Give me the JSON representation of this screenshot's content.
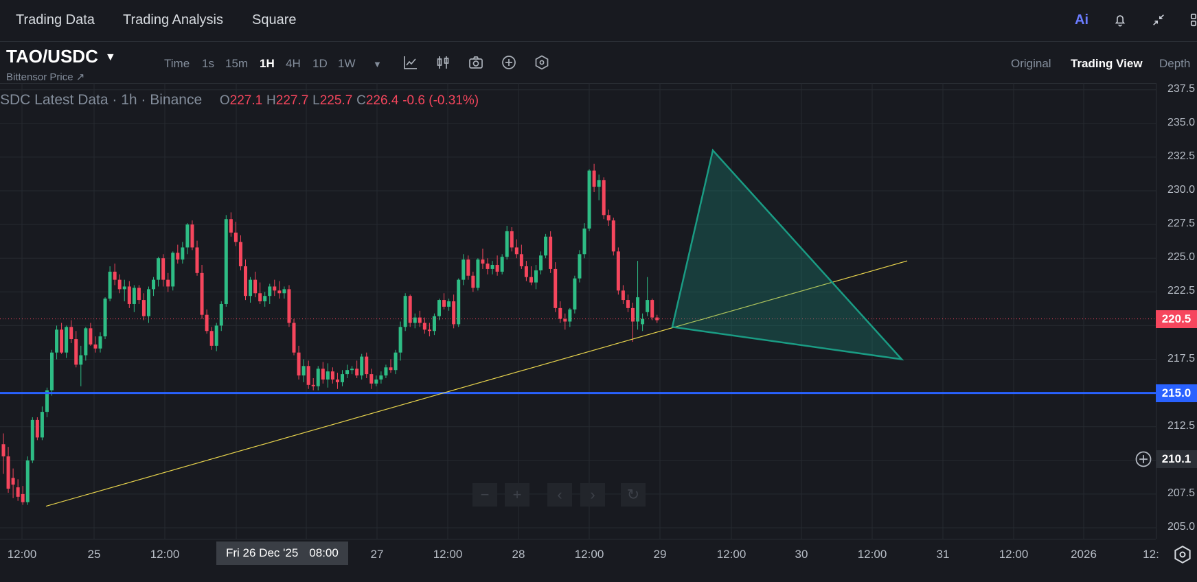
{
  "nav": {
    "items": [
      "Trading Data",
      "Trading Analysis",
      "Square"
    ],
    "ai_label": "Ai",
    "icons": [
      "ai-icon",
      "bell-icon",
      "collapse-icon",
      "grid-icon"
    ]
  },
  "toolbar": {
    "pair": "TAO/USDC",
    "pair_caret": "▼",
    "subtitle": "Bittensor Price ↗",
    "timeframes": [
      "Time",
      "1s",
      "15m",
      "1H",
      "4H",
      "1D",
      "1W"
    ],
    "active_timeframe": "1H",
    "more_caret": "▼",
    "tools": [
      "indicator-icon",
      "candle-type-icon",
      "camera-icon",
      "add-icon",
      "settings-hex-icon"
    ],
    "views": [
      "Original",
      "Trading View",
      "Depth"
    ],
    "active_view": "Trading View"
  },
  "legend": {
    "title": "SDC Latest Data · 1h · Binance",
    "o_label": "O",
    "o_val": "227.1",
    "h_label": "H",
    "h_val": "227.7",
    "l_label": "L",
    "l_val": "225.7",
    "c_label": "C",
    "c_val": "226.4",
    "change": "-0.6 (-0.31%)"
  },
  "price_axis": {
    "ticks": [
      "237.5",
      "235.0",
      "232.5",
      "230.0",
      "227.5",
      "225.0",
      "222.5",
      "220.0",
      "217.5",
      "215.0",
      "212.5",
      "210.0",
      "207.5",
      "205.0"
    ],
    "current_price": "220.5",
    "hline_price": "215.0",
    "crosshair_price": "210.1"
  },
  "time_axis": {
    "ticks": [
      "12:00",
      "25",
      "12:00",
      "27",
      "12:00",
      "28",
      "12:00",
      "29",
      "12:00",
      "30",
      "12:00",
      "31",
      "12:00",
      "2026",
      "12:"
    ],
    "crosshair_date": "Fri 26 Dec '25",
    "crosshair_time": "08:00"
  },
  "zoom_controls": [
    "−",
    "+",
    "‹",
    "›",
    "↻"
  ],
  "colors": {
    "up": "#2ebd85",
    "down": "#f6465d",
    "hline": "#2962ff",
    "trendline": "#e8d44d",
    "pattern": "#1a9c84"
  },
  "chart_data": {
    "type": "candlestick",
    "ylim": [
      205.0,
      238.5
    ],
    "candles": [
      [
        211.2,
        212.0,
        209.0,
        210.3
      ],
      [
        210.3,
        211.0,
        207.6,
        207.9
      ],
      [
        208.7,
        209.4,
        207.2,
        208.2
      ],
      [
        208.0,
        208.6,
        207.0,
        207.3
      ],
      [
        207.5,
        208.1,
        206.7,
        206.9
      ],
      [
        206.9,
        210.3,
        206.7,
        210.0
      ],
      [
        210.0,
        213.2,
        209.8,
        213.0
      ],
      [
        213.0,
        213.2,
        211.5,
        211.7
      ],
      [
        211.7,
        214.0,
        211.5,
        213.6
      ],
      [
        213.6,
        215.4,
        213.2,
        215.2
      ],
      [
        215.2,
        218.2,
        214.8,
        218.0
      ],
      [
        218.0,
        220.0,
        217.5,
        219.7
      ],
      [
        219.7,
        220.2,
        217.9,
        218.0
      ],
      [
        218.0,
        220.0,
        217.6,
        219.9
      ],
      [
        219.9,
        220.4,
        218.7,
        219.0
      ],
      [
        219.0,
        219.6,
        216.9,
        217.1
      ],
      [
        217.1,
        218.5,
        215.5,
        217.8
      ],
      [
        217.8,
        219.9,
        217.4,
        219.8
      ],
      [
        219.8,
        220.2,
        218.5,
        218.6
      ],
      [
        218.6,
        219.2,
        218.0,
        218.3
      ],
      [
        218.3,
        219.5,
        218.0,
        219.2
      ],
      [
        219.2,
        222.1,
        219.0,
        222.0
      ],
      [
        222.0,
        224.4,
        221.8,
        224.0
      ],
      [
        224.0,
        224.6,
        223.0,
        223.4
      ],
      [
        223.4,
        223.8,
        222.4,
        222.7
      ],
      [
        222.7,
        223.4,
        221.8,
        222.9
      ],
      [
        222.9,
        223.3,
        221.3,
        221.6
      ],
      [
        221.6,
        223.0,
        221.0,
        222.8
      ],
      [
        222.8,
        223.0,
        221.6,
        221.9
      ],
      [
        221.9,
        222.4,
        220.4,
        220.7
      ],
      [
        220.7,
        222.9,
        220.2,
        222.7
      ],
      [
        222.7,
        223.6,
        222.2,
        223.4
      ],
      [
        223.4,
        225.1,
        222.9,
        225.0
      ],
      [
        225.0,
        225.3,
        222.9,
        223.4
      ],
      [
        223.4,
        223.9,
        222.5,
        222.9
      ],
      [
        222.9,
        225.5,
        222.6,
        225.4
      ],
      [
        225.4,
        226.0,
        224.6,
        224.9
      ],
      [
        224.9,
        226.2,
        224.6,
        225.8
      ],
      [
        225.8,
        227.6,
        225.3,
        227.5
      ],
      [
        227.5,
        227.8,
        225.6,
        225.8
      ],
      [
        225.8,
        226.3,
        223.7,
        223.9
      ],
      [
        223.9,
        224.5,
        220.5,
        220.8
      ],
      [
        220.8,
        221.2,
        219.4,
        219.6
      ],
      [
        219.6,
        219.9,
        218.2,
        218.5
      ],
      [
        218.5,
        220.2,
        218.1,
        220.0
      ],
      [
        220.0,
        221.8,
        219.6,
        221.6
      ],
      [
        221.6,
        228.2,
        221.4,
        227.9
      ],
      [
        227.9,
        228.4,
        226.6,
        226.9
      ],
      [
        226.9,
        227.7,
        225.9,
        226.2
      ],
      [
        226.2,
        226.7,
        224.1,
        224.4
      ],
      [
        224.4,
        224.9,
        221.9,
        222.2
      ],
      [
        222.2,
        223.6,
        221.7,
        223.4
      ],
      [
        223.4,
        224.0,
        222.1,
        222.4
      ],
      [
        222.4,
        223.2,
        221.6,
        221.8
      ],
      [
        221.8,
        222.5,
        221.4,
        222.2
      ],
      [
        222.2,
        223.1,
        221.6,
        222.9
      ],
      [
        222.9,
        223.4,
        222.2,
        222.6
      ],
      [
        222.6,
        223.3,
        222.0,
        222.4
      ],
      [
        222.4,
        222.9,
        222.0,
        222.7
      ],
      [
        222.7,
        223.0,
        219.9,
        220.2
      ],
      [
        220.2,
        220.5,
        217.8,
        218.0
      ],
      [
        218.0,
        218.5,
        216.0,
        216.3
      ],
      [
        216.3,
        217.5,
        215.8,
        217.0
      ],
      [
        217.0,
        217.4,
        215.3,
        215.6
      ],
      [
        215.6,
        216.1,
        215.2,
        215.5
      ],
      [
        215.5,
        217.0,
        215.2,
        216.8
      ],
      [
        216.8,
        217.3,
        215.7,
        216.0
      ],
      [
        216.0,
        217.2,
        215.4,
        216.6
      ],
      [
        216.6,
        216.9,
        215.7,
        216.0
      ],
      [
        216.0,
        216.5,
        215.3,
        215.8
      ],
      [
        215.8,
        216.7,
        215.5,
        216.4
      ],
      [
        216.4,
        217.1,
        216.1,
        216.7
      ],
      [
        216.7,
        217.0,
        216.4,
        216.8
      ],
      [
        216.8,
        217.4,
        216.1,
        216.3
      ],
      [
        216.3,
        217.9,
        216.0,
        217.7
      ],
      [
        217.7,
        218.0,
        216.1,
        216.4
      ],
      [
        216.4,
        216.8,
        215.3,
        215.7
      ],
      [
        215.7,
        216.3,
        215.5,
        216.0
      ],
      [
        216.0,
        216.6,
        215.7,
        216.3
      ],
      [
        216.3,
        217.1,
        216.1,
        216.9
      ],
      [
        216.9,
        217.5,
        216.5,
        216.7
      ],
      [
        216.7,
        218.2,
        216.4,
        218.0
      ],
      [
        218.0,
        220.3,
        217.4,
        219.9
      ],
      [
        219.9,
        222.4,
        219.6,
        222.2
      ],
      [
        222.2,
        222.3,
        219.9,
        220.2
      ],
      [
        220.2,
        220.9,
        219.8,
        220.6
      ],
      [
        220.6,
        221.1,
        219.9,
        220.2
      ],
      [
        220.2,
        220.6,
        219.4,
        219.7
      ],
      [
        219.7,
        220.2,
        219.2,
        219.6
      ],
      [
        219.6,
        220.9,
        219.3,
        220.7
      ],
      [
        220.7,
        222.0,
        220.4,
        221.9
      ],
      [
        221.9,
        222.4,
        221.2,
        221.4
      ],
      [
        221.4,
        222.0,
        221.1,
        221.8
      ],
      [
        221.8,
        222.3,
        219.8,
        220.1
      ],
      [
        220.1,
        223.5,
        219.9,
        223.4
      ],
      [
        223.4,
        225.3,
        223.0,
        224.9
      ],
      [
        224.9,
        225.2,
        223.4,
        223.7
      ],
      [
        223.7,
        224.0,
        222.5,
        222.8
      ],
      [
        222.8,
        225.0,
        222.6,
        224.9
      ],
      [
        224.9,
        225.7,
        224.2,
        224.6
      ],
      [
        224.6,
        225.0,
        223.8,
        224.2
      ],
      [
        224.2,
        224.8,
        223.8,
        224.5
      ],
      [
        224.5,
        225.2,
        223.7,
        224.0
      ],
      [
        224.0,
        225.3,
        223.8,
        225.1
      ],
      [
        225.1,
        227.4,
        224.9,
        227.0
      ],
      [
        227.0,
        227.3,
        225.5,
        225.8
      ],
      [
        225.8,
        226.4,
        225.0,
        225.3
      ],
      [
        225.3,
        226.0,
        224.2,
        224.4
      ],
      [
        224.4,
        224.8,
        223.3,
        223.6
      ],
      [
        223.6,
        224.4,
        223.0,
        223.2
      ],
      [
        223.2,
        224.5,
        222.7,
        224.1
      ],
      [
        224.1,
        225.5,
        223.8,
        225.2
      ],
      [
        225.2,
        226.8,
        225.0,
        226.6
      ],
      [
        226.6,
        227.0,
        223.9,
        224.2
      ],
      [
        224.2,
        224.7,
        221.0,
        221.3
      ],
      [
        221.3,
        221.8,
        220.2,
        220.5
      ],
      [
        220.5,
        220.9,
        219.7,
        220.3
      ],
      [
        220.3,
        221.3,
        219.9,
        221.2
      ],
      [
        221.2,
        223.7,
        220.9,
        223.5
      ],
      [
        223.5,
        225.6,
        223.2,
        225.3
      ],
      [
        225.3,
        227.6,
        225.0,
        227.2
      ],
      [
        227.2,
        231.6,
        227.0,
        231.5
      ],
      [
        231.5,
        232.0,
        229.9,
        230.3
      ],
      [
        230.3,
        231.2,
        229.3,
        230.8
      ],
      [
        230.8,
        231.0,
        227.9,
        228.2
      ],
      [
        228.2,
        228.6,
        227.4,
        227.8
      ],
      [
        227.8,
        228.0,
        225.2,
        225.5
      ],
      [
        225.5,
        225.8,
        222.3,
        222.6
      ],
      [
        222.6,
        223.0,
        221.6,
        221.9
      ],
      [
        221.9,
        222.3,
        221.0,
        221.3
      ],
      [
        221.3,
        221.7,
        218.8,
        220.3
      ],
      [
        220.3,
        224.8,
        219.7,
        222.1
      ],
      [
        220.1,
        220.9,
        219.6,
        220.5
      ],
      [
        221.0,
        223.6,
        220.7,
        221.9
      ],
      [
        221.9,
        222.0,
        220.4,
        220.6
      ],
      [
        220.6,
        220.8,
        220.2,
        220.4
      ]
    ],
    "horizontal_line": 215.0,
    "trendline": [
      [
        206.6
      ],
      [
        224.8
      ]
    ],
    "pattern_triangle": [
      219.9,
      233.0,
      217.5
    ]
  }
}
